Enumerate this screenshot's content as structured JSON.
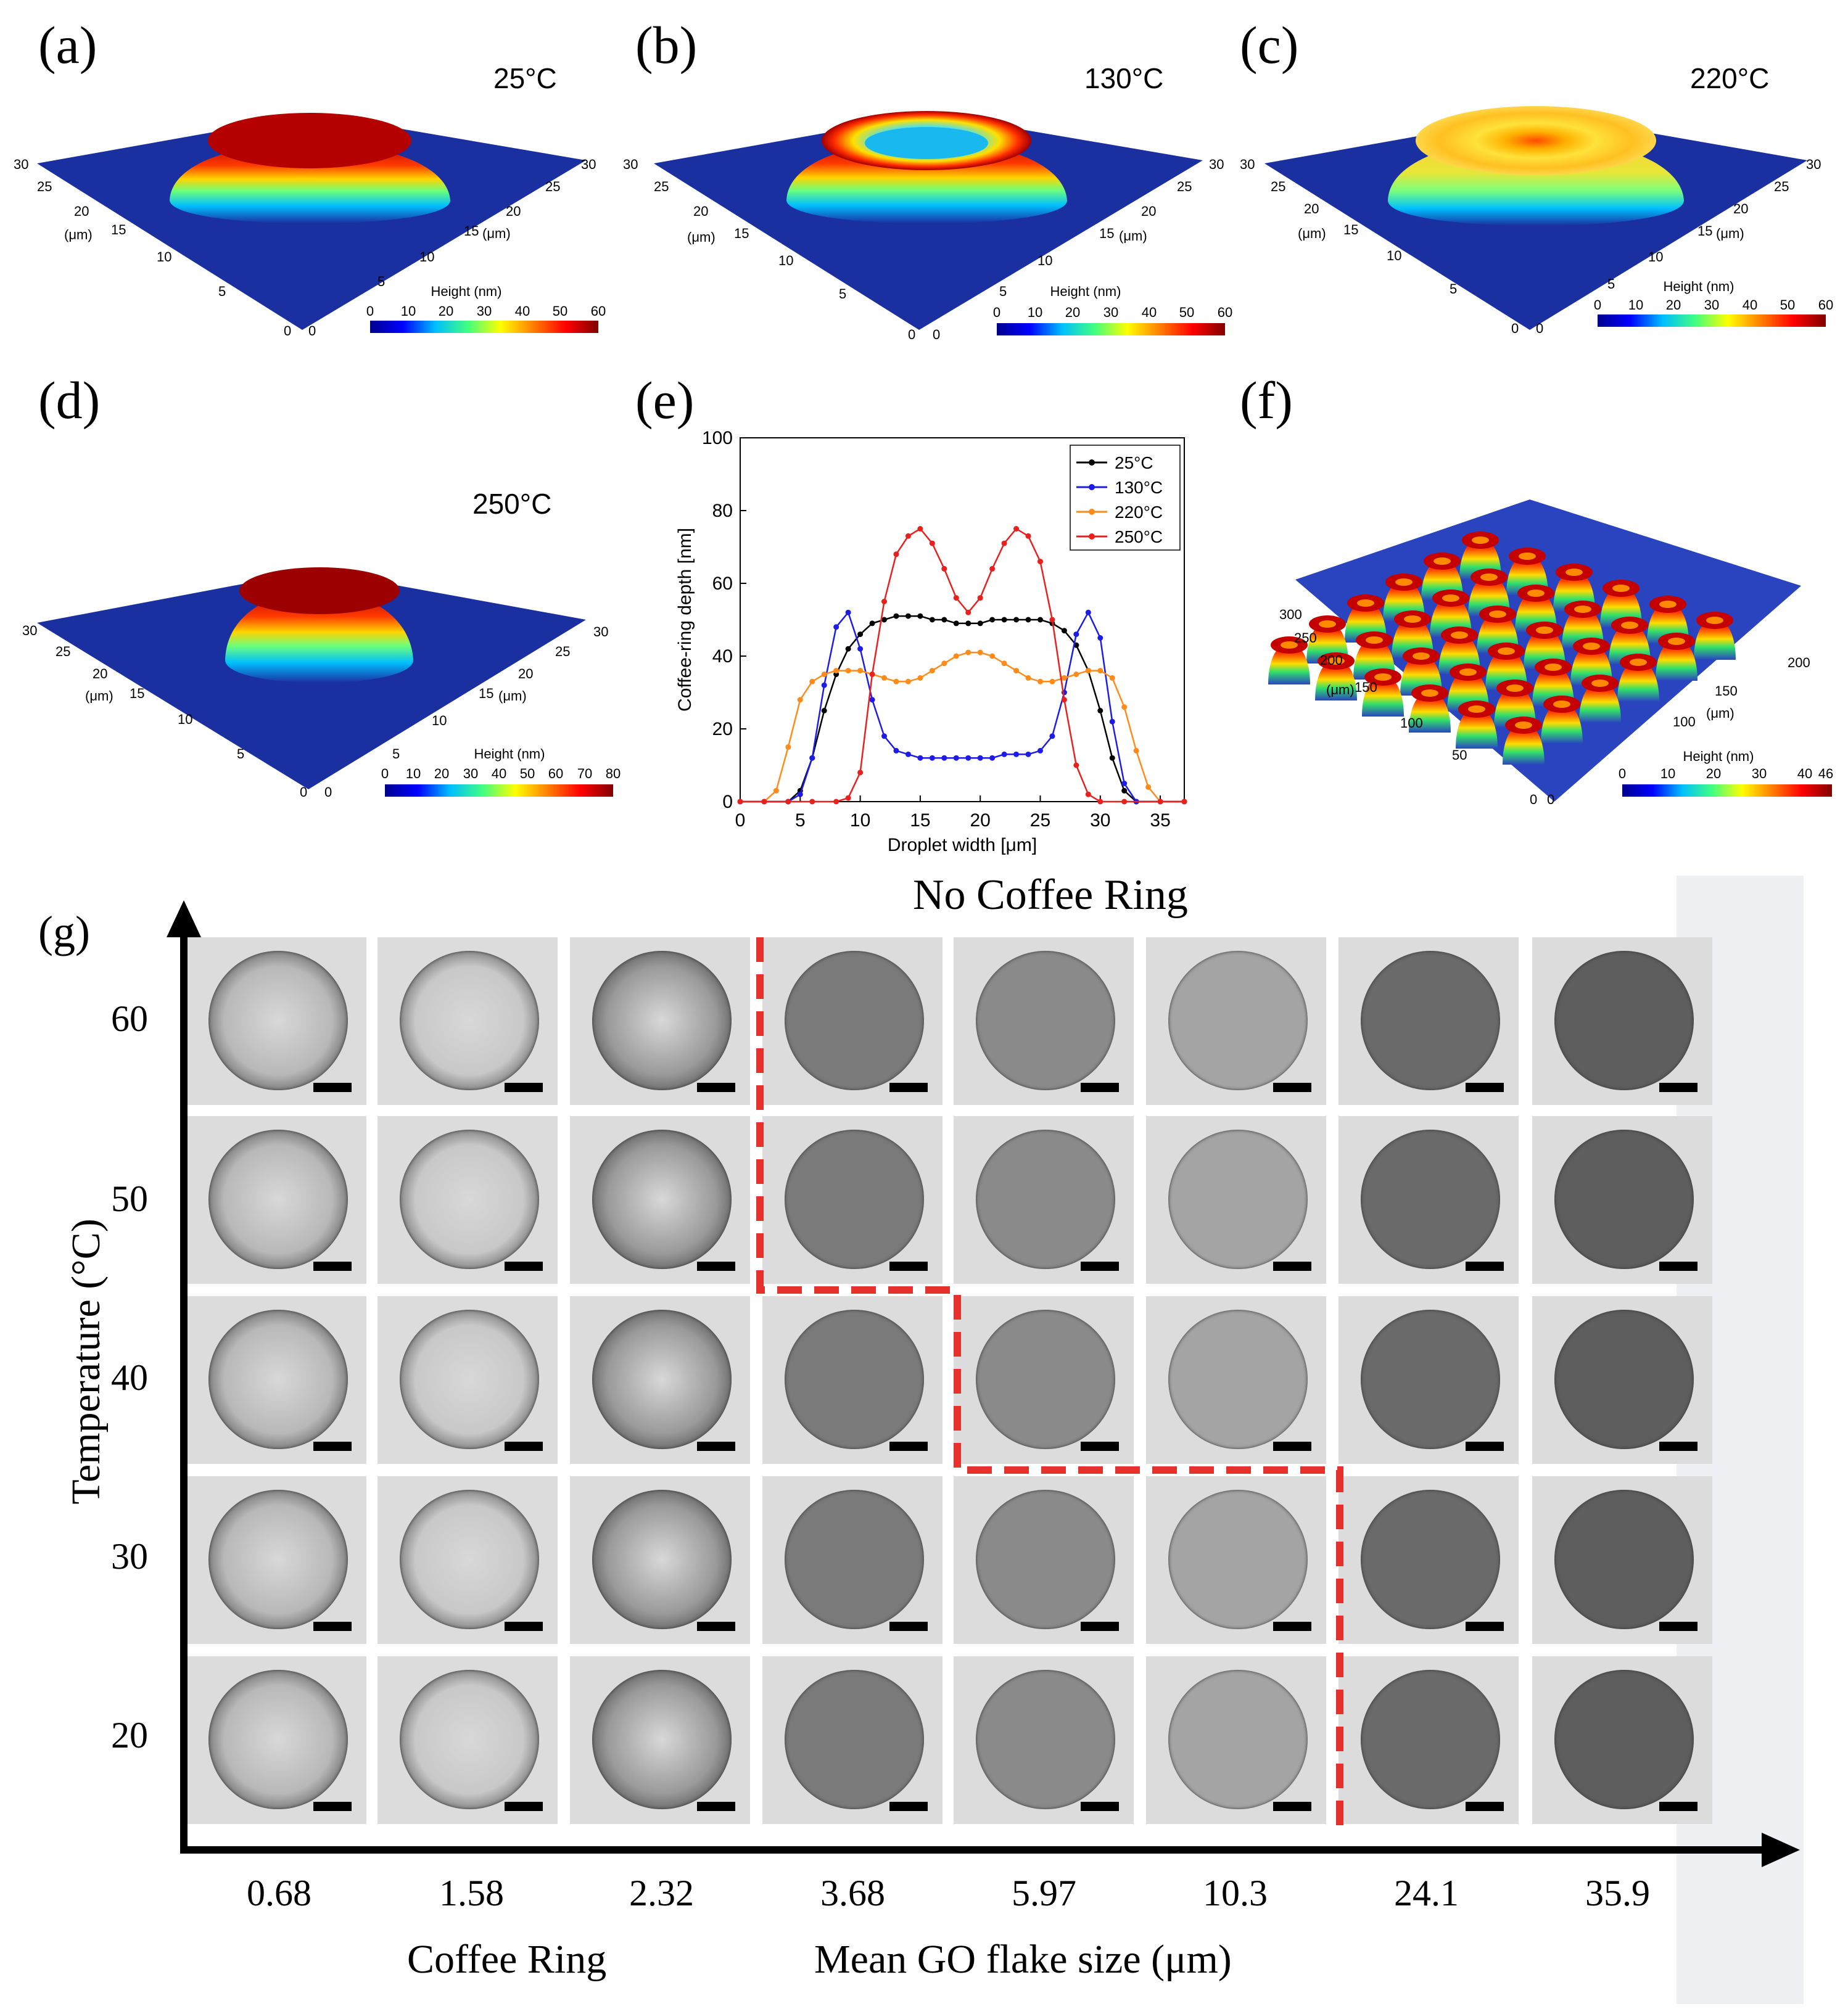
{
  "panels": {
    "a": {
      "label": "(a)",
      "temp": "25°C",
      "cbar_title": "Height (nm)",
      "cbar_ticks": [
        "0",
        "10",
        "20",
        "30",
        "40",
        "50",
        "60"
      ]
    },
    "b": {
      "label": "(b)",
      "temp": "130°C",
      "cbar_title": "Height (nm)",
      "cbar_ticks": [
        "0",
        "10",
        "20",
        "30",
        "40",
        "50",
        "60"
      ]
    },
    "c": {
      "label": "(c)",
      "temp": "220°C",
      "cbar_title": "Height (nm)",
      "cbar_ticks": [
        "0",
        "10",
        "20",
        "30",
        "40",
        "50",
        "60"
      ]
    },
    "d": {
      "label": "(d)",
      "temp": "250°C",
      "cbar_title": "Height (nm)",
      "cbar_ticks": [
        "0",
        "10",
        "20",
        "30",
        "40",
        "50",
        "60",
        "70",
        "80"
      ]
    },
    "e": {
      "label": "(e)"
    },
    "f": {
      "label": "(f)",
      "cbar_title": "Height (nm)",
      "cbar_ticks": [
        "0",
        "10",
        "20",
        "30",
        "40",
        "46"
      ]
    }
  },
  "surface_axes": {
    "unit": "(μm)",
    "ticks": [
      "0",
      "5",
      "10",
      "15",
      "20",
      "25",
      "30"
    ],
    "f_ticks_left": [
      "0",
      "50",
      "100",
      "150",
      "200",
      "250",
      "300"
    ],
    "f_ticks_right": [
      "0",
      "100",
      "150",
      "200"
    ]
  },
  "chart_data": {
    "type": "line",
    "xlabel": "Droplet width [μm]",
    "ylabel": "Coffee-ring depth [nm]",
    "xlim": [
      0,
      37
    ],
    "ylim": [
      0,
      100
    ],
    "xticks": [
      0,
      5,
      10,
      15,
      20,
      25,
      30,
      35
    ],
    "yticks": [
      0,
      20,
      40,
      60,
      80,
      100
    ],
    "legend_position": "top-right",
    "series": [
      {
        "name": "25°C",
        "color": "#000000",
        "x": [
          0,
          2,
          4,
          5,
          6,
          7,
          8,
          9,
          10,
          11,
          12,
          13,
          14,
          15,
          16,
          17,
          18,
          19,
          20,
          21,
          22,
          23,
          24,
          25,
          26,
          27,
          28,
          29,
          30,
          31,
          32,
          33,
          35,
          37
        ],
        "y": [
          0,
          0,
          0,
          3,
          12,
          25,
          35,
          42,
          46,
          49,
          50,
          51,
          51,
          51,
          50,
          50,
          49,
          49,
          49,
          50,
          50,
          50,
          50,
          50,
          49,
          47,
          43,
          36,
          25,
          12,
          3,
          0,
          0,
          0
        ]
      },
      {
        "name": "130°C",
        "color": "#1c1ce6",
        "x": [
          0,
          2,
          4,
          5,
          6,
          7,
          8,
          9,
          10,
          11,
          12,
          13,
          14,
          15,
          16,
          17,
          18,
          19,
          20,
          21,
          22,
          23,
          24,
          25,
          26,
          27,
          28,
          29,
          30,
          31,
          32,
          33,
          35,
          37
        ],
        "y": [
          0,
          0,
          0,
          2,
          12,
          32,
          48,
          52,
          42,
          28,
          18,
          14,
          13,
          12,
          12,
          12,
          12,
          12,
          12,
          12,
          13,
          13,
          13,
          14,
          18,
          30,
          46,
          52,
          45,
          22,
          5,
          0,
          0,
          0
        ]
      },
      {
        "name": "220°C",
        "color": "#ff8c1a",
        "x": [
          0,
          2,
          3,
          4,
          5,
          6,
          7,
          8,
          9,
          10,
          11,
          12,
          13,
          14,
          15,
          16,
          17,
          18,
          19,
          20,
          21,
          22,
          23,
          24,
          25,
          26,
          27,
          28,
          29,
          30,
          31,
          32,
          33,
          34,
          35,
          37
        ],
        "y": [
          0,
          0,
          3,
          15,
          28,
          33,
          35,
          36,
          36,
          36,
          35,
          34,
          33,
          33,
          34,
          36,
          38,
          40,
          41,
          41,
          40,
          38,
          36,
          34,
          33,
          33,
          34,
          35,
          36,
          36,
          34,
          26,
          14,
          4,
          0,
          0
        ]
      },
      {
        "name": "250°C",
        "color": "#e8201e",
        "x": [
          0,
          2,
          4,
          6,
          8,
          9,
          10,
          11,
          12,
          13,
          14,
          15,
          16,
          17,
          18,
          19,
          20,
          21,
          22,
          23,
          24,
          25,
          26,
          27,
          28,
          29,
          30,
          32,
          35,
          37
        ],
        "y": [
          0,
          0,
          0,
          0,
          0,
          1,
          8,
          35,
          55,
          68,
          73,
          75,
          71,
          64,
          56,
          52,
          56,
          64,
          71,
          75,
          73,
          66,
          50,
          28,
          10,
          2,
          0,
          0,
          0,
          0
        ]
      }
    ]
  },
  "grid": {
    "label": "(g)",
    "top_label": "No Coffee Ring",
    "bottom_left_label": "Coffee Ring",
    "xlabel": "Mean GO flake size (μm)",
    "ylabel": "Temperature (°C)",
    "flake_sizes": [
      "0.68",
      "1.58",
      "2.32",
      "3.68",
      "5.97",
      "10.3",
      "24.1",
      "35.9"
    ],
    "temperatures": [
      "60",
      "50",
      "40",
      "30",
      "20"
    ],
    "boundary_color": "#e5302c",
    "no_coffee_ring_from_column_index": [
      3,
      3,
      4,
      6,
      6
    ]
  },
  "colors": {
    "jet": [
      "#00008f",
      "#0000ff",
      "#00bfff",
      "#40ff80",
      "#ffff00",
      "#ff7f00",
      "#ff0000",
      "#800000"
    ],
    "surface_base": "#1a2fa0"
  }
}
